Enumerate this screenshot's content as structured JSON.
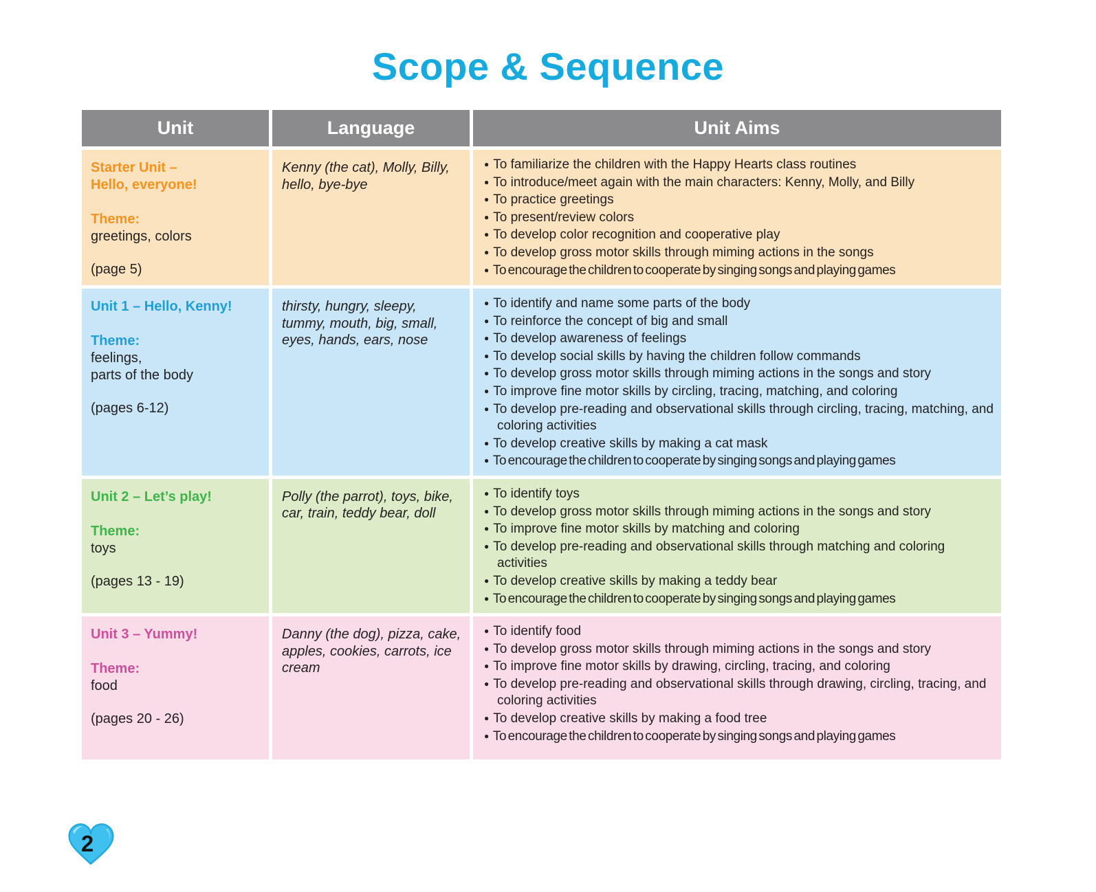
{
  "page": {
    "title": "Scope & Sequence",
    "page_number": "2"
  },
  "colors": {
    "title": "#17AADF",
    "header_bg": "#8B8B8D",
    "header_text": "#FFFFFF",
    "body_text": "#232020",
    "heart_fill": "#3FC0EE",
    "heart_rim": "#25A9DE",
    "heart_highlight": "#A9E3F7"
  },
  "icons": {
    "bullet": "●",
    "heart": "heart-icon"
  },
  "table": {
    "headers": [
      "Unit",
      "Language",
      "Unit Aims"
    ],
    "rows": [
      {
        "name": "starter-unit",
        "bg": "#FCE3C0",
        "accent": "#F6921E",
        "unit_title": "Starter Unit –\nHello, everyone!",
        "theme_label": "Theme:",
        "theme": "greetings, colors",
        "pages": "(page 5)",
        "language": "Kenny (the cat), Molly, Billy, hello, bye-bye",
        "aims": [
          "To familiarize the children with the Happy Hearts class routines",
          "To introduce/meet again with the main characters: Kenny, Molly, and Billy",
          "To practice greetings",
          "To present/review colors",
          "To develop color recognition and cooperative play",
          "To develop gross motor skills through miming actions in the songs",
          "To encourage the children to cooperate by singing songs and playing games"
        ]
      },
      {
        "name": "unit-1",
        "bg": "#C9E5F8",
        "accent": "#1E9FD9",
        "unit_title": "Unit 1 – Hello, Kenny!",
        "theme_label": "Theme:",
        "theme": "feelings,\nparts of the body",
        "pages": "(pages 6-12)",
        "language": "thirsty, hungry, sleepy, tummy, mouth, big, small, eyes, hands, ears, nose",
        "aims": [
          "To identify and name some parts of the body",
          "To reinforce the concept of big and small",
          "To develop awareness of feelings",
          "To develop social skills by having the children follow commands",
          "To develop gross motor skills through miming actions in the songs and story",
          "To improve fine motor skills by circling, tracing, matching, and coloring",
          "To develop pre-reading and observational skills through circling, tracing, matching, and coloring activities",
          "To develop creative skills by making a cat mask",
          "To encourage the children to cooperate by singing songs and playing games"
        ]
      },
      {
        "name": "unit-2",
        "bg": "#DDEBC9",
        "accent": "#3DB54A",
        "unit_title": "Unit 2 – Let’s play!",
        "theme_label": "Theme:",
        "theme": "toys",
        "pages": "(pages 13 - 19)",
        "language": "Polly (the parrot), toys, bike, car, train, teddy bear, doll",
        "aims": [
          "To identify toys",
          "To develop gross motor skills through miming actions in the songs and story",
          "To improve fine motor skills by matching and coloring",
          "To develop pre-reading and observational skills through matching and coloring activities",
          "To develop creative skills by making a teddy bear",
          "To encourage the children to cooperate by singing songs and playing games"
        ]
      },
      {
        "name": "unit-3",
        "bg": "#F9DCE8",
        "accent": "#CE4E9B",
        "unit_title": "Unit 3 – Yummy!",
        "theme_label": "Theme:",
        "theme": "food",
        "pages": "(pages 20 - 26)",
        "language": "Danny (the dog), pizza, cake, apples, cookies, carrots, ice cream",
        "aims": [
          "To identify food",
          "To develop gross motor skills through miming actions in the songs and story",
          "To improve fine motor skills by drawing, circling, tracing, and coloring",
          "To develop pre-reading and observational skills through drawing, circling, tracing, and coloring activities",
          "To develop creative skills by making a food tree",
          "To encourage the children to cooperate by singing songs and playing games"
        ]
      }
    ]
  }
}
